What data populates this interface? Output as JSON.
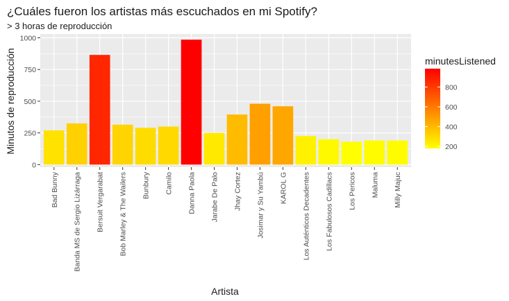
{
  "chart_data": {
    "type": "bar",
    "title": "¿Cuáles fueron los artistas más escuchados en mi Spotify?",
    "subtitle": "> 3 horas de reproducción",
    "xlabel": "Artista",
    "ylabel": "Minutos de reproducción",
    "categories": [
      "Bad Bunny",
      "Banda MS de Sergio Lizárraga",
      "Bersuit Vergarabat",
      "Bob Marley & The Wailers",
      "Bunbury",
      "Camilo",
      "Danna Paola",
      "Jarabe De Palo",
      "Jhay Cortez",
      "Josimar y Su Yambú",
      "KAROL G",
      "Los Auténticos Decadentes",
      "Los Fabulosos Cadillacs",
      "Los Pericos",
      "Maluma",
      "Milly Majuc"
    ],
    "series": [
      {
        "values": [
          270,
          325,
          865,
          315,
          290,
          300,
          985,
          250,
          395,
          480,
          460,
          225,
          200,
          180,
          190,
          190
        ]
      }
    ],
    "ylim": [
      -20,
      1030
    ],
    "yticks": [
      "0",
      "250",
      "500",
      "750",
      "1000"
    ],
    "grid": true,
    "legend": {
      "title": "minutesListened",
      "placement": "right",
      "ticks": [
        "200",
        "400",
        "600",
        "800"
      ],
      "range": [
        180,
        985
      ]
    },
    "colors": {
      "low": "#ffff00",
      "high": "#ff0000",
      "panel": "#ebebeb",
      "grid": "#ffffff"
    }
  }
}
